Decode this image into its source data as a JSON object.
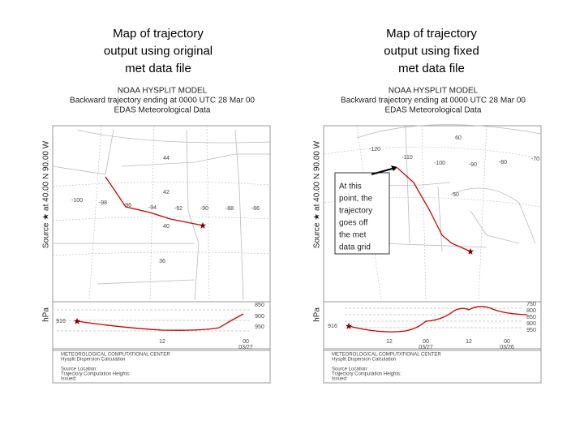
{
  "slide": {
    "panels": [
      {
        "caption": [
          "Map of trajectory",
          "output using original",
          "met data file"
        ],
        "map": {
          "title": "NOAA HYSPLIT MODEL",
          "subtitle": "Backward trajectory ending at 0000 UTC 28 Mar 00",
          "data_source": "EDAS Meteorological Data",
          "source_label": "Source ★ at 40.00 N 90.00 W",
          "hpa_label": "hPa",
          "map_labels": [
            "44",
            "42",
            "40",
            "36",
            "-100",
            "-98",
            "-96",
            "-94",
            "-92",
            "-90",
            "-88",
            "-86"
          ],
          "height_labels": [
            "850",
            "900",
            "950",
            "916"
          ],
          "time_labels": [
            "12",
            "00",
            "03/27"
          ],
          "footer": [
            "METEOROLOGICAL COMPUTATIONAL CENTER",
            "Hysplit Dispersion Calculation",
            "Source Location:",
            "Trajectory Computation Heights:",
            "Issued:"
          ]
        }
      },
      {
        "caption": [
          "Map of trajectory",
          "output using fixed",
          "met data file"
        ],
        "map": {
          "title": "NOAA HYSPLIT MODEL",
          "subtitle": "Backward trajectory ending at 0000 UTC 28 Mar 00",
          "data_source": "EDAS Meteorological Data",
          "source_label": "Source ★ at 40.00 N 90.00 W",
          "hpa_label": "hPa",
          "map_labels": [
            "-120",
            "-110",
            "-100",
            "-90",
            "-80",
            "-70",
            "60",
            "50"
          ],
          "height_labels": [
            "750",
            "800",
            "850",
            "900",
            "950",
            "916"
          ],
          "time_labels": [
            "12",
            "00",
            "03/27",
            "12",
            "00",
            "03/26"
          ],
          "footer": [
            "METEOROLOGICAL COMPUTATIONAL CENTER",
            "Hysplit Dispersion Calculation",
            "Source Location:",
            "Trajectory Computation Heights:",
            "Issued:"
          ]
        }
      }
    ],
    "callout": [
      "At this",
      "point, the",
      "trajectory",
      "goes off",
      "the met",
      "data grid"
    ]
  }
}
